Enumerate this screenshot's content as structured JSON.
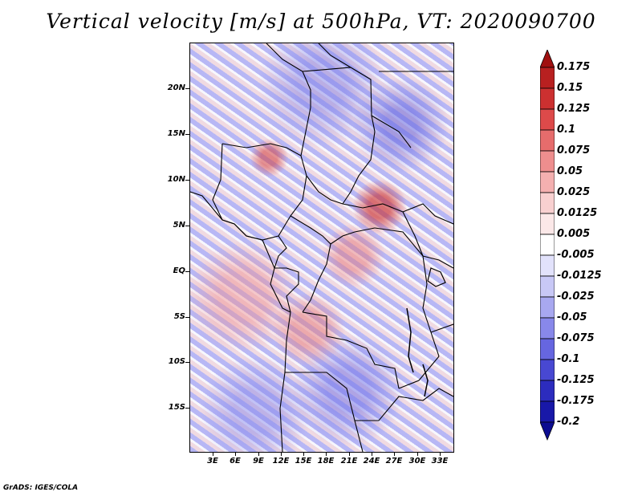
{
  "title": "Vertical velocity [m/s] at 500hPa, VT: 2020090700",
  "footer": "GrADS: IGES/COLA",
  "map": {
    "variable": "Vertical velocity",
    "units": "m/s",
    "level": "500hPa",
    "valid_time": "2020090700",
    "lat_ticks": [
      "20N",
      "15N",
      "10N",
      "5N",
      "EQ",
      "5S",
      "10S",
      "15S"
    ],
    "lon_ticks": [
      "3E",
      "6E",
      "9E",
      "12E",
      "15E",
      "18E",
      "21E",
      "24E",
      "27E",
      "30E",
      "33E"
    ]
  },
  "colorbar": {
    "labels": [
      "0.175",
      "0.15",
      "0.125",
      "0.1",
      "0.075",
      "0.05",
      "0.025",
      "0.0125",
      "0.005",
      "-0.005",
      "-0.0125",
      "-0.025",
      "-0.05",
      "-0.075",
      "-0.1",
      "-0.125",
      "-0.175",
      "-0.2"
    ],
    "colors": [
      "#a01010",
      "#b82020",
      "#cc3030",
      "#dd4a4a",
      "#e66c6c",
      "#ee8e8e",
      "#f4b0b0",
      "#f8d0d0",
      "#fbe8e8",
      "#ffffff",
      "#e2e2fb",
      "#c8c8f6",
      "#a8a8f0",
      "#8888ea",
      "#6666e0",
      "#4848d2",
      "#2c2cbe",
      "#1818a8",
      "#0c0c90"
    ]
  }
}
